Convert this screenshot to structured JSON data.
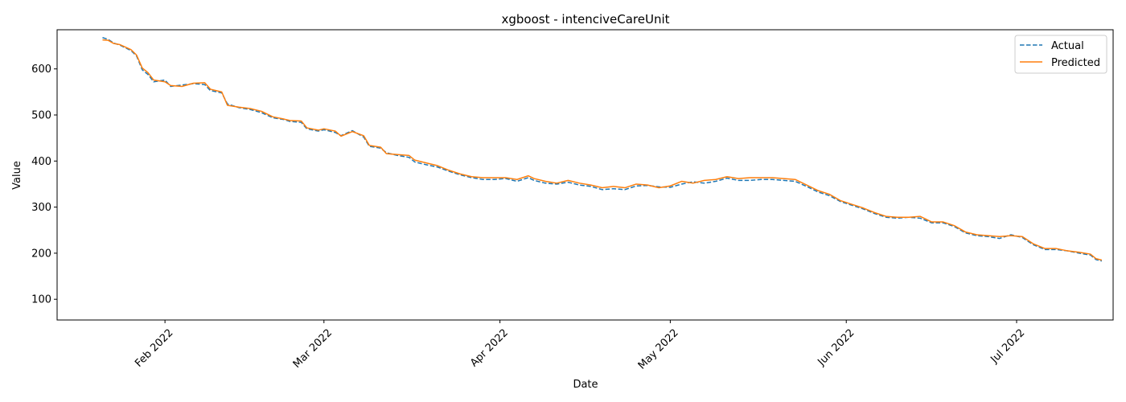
{
  "chart_data": {
    "type": "line",
    "title": "xgboost - intenciveCareUnit",
    "xlabel": "Date",
    "ylabel": "Value",
    "x_range": [
      "2022-01-13",
      "2022-07-18"
    ],
    "ylim": [
      55,
      685
    ],
    "grid": false,
    "legend_position": "top-right",
    "x_ticks": [
      {
        "date": "2022-02-01",
        "label": "Feb 2022"
      },
      {
        "date": "2022-03-01",
        "label": "Mar 2022"
      },
      {
        "date": "2022-04-01",
        "label": "Apr 2022"
      },
      {
        "date": "2022-05-01",
        "label": "May 2022"
      },
      {
        "date": "2022-06-01",
        "label": "Jun 2022"
      },
      {
        "date": "2022-07-01",
        "label": "Jul 2022"
      }
    ],
    "y_ticks": [
      100,
      200,
      300,
      400,
      500,
      600
    ],
    "series": [
      {
        "name": "Actual",
        "color": "#1f77b4",
        "style": "dashed",
        "points": [
          [
            "2022-01-21",
            668
          ],
          [
            "2022-01-22",
            664
          ],
          [
            "2022-01-23",
            656
          ],
          [
            "2022-01-24",
            652
          ],
          [
            "2022-01-26",
            640
          ],
          [
            "2022-01-27",
            628
          ],
          [
            "2022-01-28",
            598
          ],
          [
            "2022-01-29",
            588
          ],
          [
            "2022-01-30",
            572
          ],
          [
            "2022-02-01",
            576
          ],
          [
            "2022-02-02",
            562
          ],
          [
            "2022-02-04",
            565
          ],
          [
            "2022-02-06",
            568
          ],
          [
            "2022-02-08",
            566
          ],
          [
            "2022-02-09",
            553
          ],
          [
            "2022-02-11",
            548
          ],
          [
            "2022-02-12",
            524
          ],
          [
            "2022-02-14",
            516
          ],
          [
            "2022-02-16",
            512
          ],
          [
            "2022-02-18",
            505
          ],
          [
            "2022-02-20",
            494
          ],
          [
            "2022-02-22",
            490
          ],
          [
            "2022-02-23",
            486
          ],
          [
            "2022-02-25",
            484
          ],
          [
            "2022-02-26",
            470
          ],
          [
            "2022-02-28",
            465
          ],
          [
            "2022-03-01",
            468
          ],
          [
            "2022-03-03",
            462
          ],
          [
            "2022-03-04",
            455
          ],
          [
            "2022-03-06",
            466
          ],
          [
            "2022-03-08",
            452
          ],
          [
            "2022-03-09",
            432
          ],
          [
            "2022-03-11",
            428
          ],
          [
            "2022-03-12",
            418
          ],
          [
            "2022-03-14",
            412
          ],
          [
            "2022-03-16",
            408
          ],
          [
            "2022-03-17",
            398
          ],
          [
            "2022-03-19",
            392
          ],
          [
            "2022-03-21",
            387
          ],
          [
            "2022-03-23",
            378
          ],
          [
            "2022-03-25",
            370
          ],
          [
            "2022-03-27",
            364
          ],
          [
            "2022-03-29",
            360
          ],
          [
            "2022-03-31",
            360
          ],
          [
            "2022-04-02",
            362
          ],
          [
            "2022-04-04",
            356
          ],
          [
            "2022-04-06",
            364
          ],
          [
            "2022-04-07",
            358
          ],
          [
            "2022-04-09",
            352
          ],
          [
            "2022-04-11",
            350
          ],
          [
            "2022-04-13",
            354
          ],
          [
            "2022-04-15",
            348
          ],
          [
            "2022-04-17",
            345
          ],
          [
            "2022-04-19",
            338
          ],
          [
            "2022-04-21",
            340
          ],
          [
            "2022-04-23",
            338
          ],
          [
            "2022-04-25",
            346
          ],
          [
            "2022-04-27",
            347
          ],
          [
            "2022-04-29",
            344
          ],
          [
            "2022-05-01",
            343
          ],
          [
            "2022-05-03",
            350
          ],
          [
            "2022-05-05",
            355
          ],
          [
            "2022-05-07",
            352
          ],
          [
            "2022-05-09",
            356
          ],
          [
            "2022-05-11",
            363
          ],
          [
            "2022-05-13",
            358
          ],
          [
            "2022-05-15",
            358
          ],
          [
            "2022-05-17",
            360
          ],
          [
            "2022-05-19",
            360
          ],
          [
            "2022-05-21",
            358
          ],
          [
            "2022-05-23",
            356
          ],
          [
            "2022-05-25",
            345
          ],
          [
            "2022-05-27",
            333
          ],
          [
            "2022-05-29",
            325
          ],
          [
            "2022-05-31",
            312
          ],
          [
            "2022-06-02",
            304
          ],
          [
            "2022-06-04",
            296
          ],
          [
            "2022-06-06",
            286
          ],
          [
            "2022-06-08",
            278
          ],
          [
            "2022-06-10",
            276
          ],
          [
            "2022-06-12",
            278
          ],
          [
            "2022-06-14",
            276
          ],
          [
            "2022-06-16",
            266
          ],
          [
            "2022-06-18",
            266
          ],
          [
            "2022-06-20",
            258
          ],
          [
            "2022-06-22",
            244
          ],
          [
            "2022-06-24",
            238
          ],
          [
            "2022-06-26",
            236
          ],
          [
            "2022-06-28",
            232
          ],
          [
            "2022-06-30",
            240
          ],
          [
            "2022-07-02",
            234
          ],
          [
            "2022-07-04",
            218
          ],
          [
            "2022-07-06",
            208
          ],
          [
            "2022-07-08",
            208
          ],
          [
            "2022-07-10",
            205
          ],
          [
            "2022-07-12",
            200
          ],
          [
            "2022-07-14",
            196
          ],
          [
            "2022-07-15",
            186
          ],
          [
            "2022-07-16",
            183
          ]
        ]
      },
      {
        "name": "Predicted",
        "color": "#ff7f0e",
        "style": "solid",
        "points": [
          [
            "2022-01-21",
            663
          ],
          [
            "2022-01-22",
            662
          ],
          [
            "2022-01-23",
            655
          ],
          [
            "2022-01-24",
            653
          ],
          [
            "2022-01-26",
            642
          ],
          [
            "2022-01-27",
            630
          ],
          [
            "2022-01-28",
            602
          ],
          [
            "2022-01-29",
            592
          ],
          [
            "2022-01-30",
            576
          ],
          [
            "2022-02-01",
            572
          ],
          [
            "2022-02-02",
            564
          ],
          [
            "2022-02-04",
            562
          ],
          [
            "2022-02-06",
            569
          ],
          [
            "2022-02-08",
            570
          ],
          [
            "2022-02-09",
            556
          ],
          [
            "2022-02-11",
            550
          ],
          [
            "2022-02-12",
            521
          ],
          [
            "2022-02-14",
            517
          ],
          [
            "2022-02-16",
            514
          ],
          [
            "2022-02-18",
            508
          ],
          [
            "2022-02-20",
            496
          ],
          [
            "2022-02-22",
            491
          ],
          [
            "2022-02-23",
            488
          ],
          [
            "2022-02-25",
            487
          ],
          [
            "2022-02-26",
            472
          ],
          [
            "2022-02-28",
            467
          ],
          [
            "2022-03-01",
            470
          ],
          [
            "2022-03-03",
            465
          ],
          [
            "2022-03-04",
            454
          ],
          [
            "2022-03-06",
            464
          ],
          [
            "2022-03-08",
            455
          ],
          [
            "2022-03-09",
            434
          ],
          [
            "2022-03-11",
            430
          ],
          [
            "2022-03-12",
            416
          ],
          [
            "2022-03-14",
            414
          ],
          [
            "2022-03-16",
            412
          ],
          [
            "2022-03-17",
            402
          ],
          [
            "2022-03-19",
            396
          ],
          [
            "2022-03-21",
            390
          ],
          [
            "2022-03-23",
            380
          ],
          [
            "2022-03-25",
            372
          ],
          [
            "2022-03-27",
            366
          ],
          [
            "2022-03-29",
            364
          ],
          [
            "2022-03-31",
            364
          ],
          [
            "2022-04-02",
            364
          ],
          [
            "2022-04-04",
            360
          ],
          [
            "2022-04-06",
            368
          ],
          [
            "2022-04-07",
            362
          ],
          [
            "2022-04-09",
            356
          ],
          [
            "2022-04-11",
            352
          ],
          [
            "2022-04-13",
            358
          ],
          [
            "2022-04-15",
            352
          ],
          [
            "2022-04-17",
            348
          ],
          [
            "2022-04-19",
            342
          ],
          [
            "2022-04-21",
            345
          ],
          [
            "2022-04-23",
            342
          ],
          [
            "2022-04-25",
            350
          ],
          [
            "2022-04-27",
            348
          ],
          [
            "2022-04-29",
            342
          ],
          [
            "2022-05-01",
            346
          ],
          [
            "2022-05-03",
            356
          ],
          [
            "2022-05-05",
            352
          ],
          [
            "2022-05-07",
            358
          ],
          [
            "2022-05-09",
            360
          ],
          [
            "2022-05-11",
            366
          ],
          [
            "2022-05-13",
            362
          ],
          [
            "2022-05-15",
            364
          ],
          [
            "2022-05-17",
            364
          ],
          [
            "2022-05-19",
            364
          ],
          [
            "2022-05-21",
            362
          ],
          [
            "2022-05-23",
            360
          ],
          [
            "2022-05-25",
            348
          ],
          [
            "2022-05-27",
            336
          ],
          [
            "2022-05-29",
            328
          ],
          [
            "2022-05-31",
            314
          ],
          [
            "2022-06-02",
            306
          ],
          [
            "2022-06-04",
            298
          ],
          [
            "2022-06-06",
            288
          ],
          [
            "2022-06-08",
            280
          ],
          [
            "2022-06-10",
            278
          ],
          [
            "2022-06-12",
            278
          ],
          [
            "2022-06-14",
            280
          ],
          [
            "2022-06-16",
            268
          ],
          [
            "2022-06-18",
            268
          ],
          [
            "2022-06-20",
            260
          ],
          [
            "2022-06-22",
            246
          ],
          [
            "2022-06-24",
            240
          ],
          [
            "2022-06-26",
            238
          ],
          [
            "2022-06-28",
            236
          ],
          [
            "2022-06-30",
            238
          ],
          [
            "2022-07-02",
            236
          ],
          [
            "2022-07-04",
            220
          ],
          [
            "2022-07-06",
            210
          ],
          [
            "2022-07-08",
            210
          ],
          [
            "2022-07-10",
            205
          ],
          [
            "2022-07-12",
            202
          ],
          [
            "2022-07-14",
            198
          ],
          [
            "2022-07-15",
            188
          ],
          [
            "2022-07-16",
            185
          ]
        ]
      }
    ]
  }
}
